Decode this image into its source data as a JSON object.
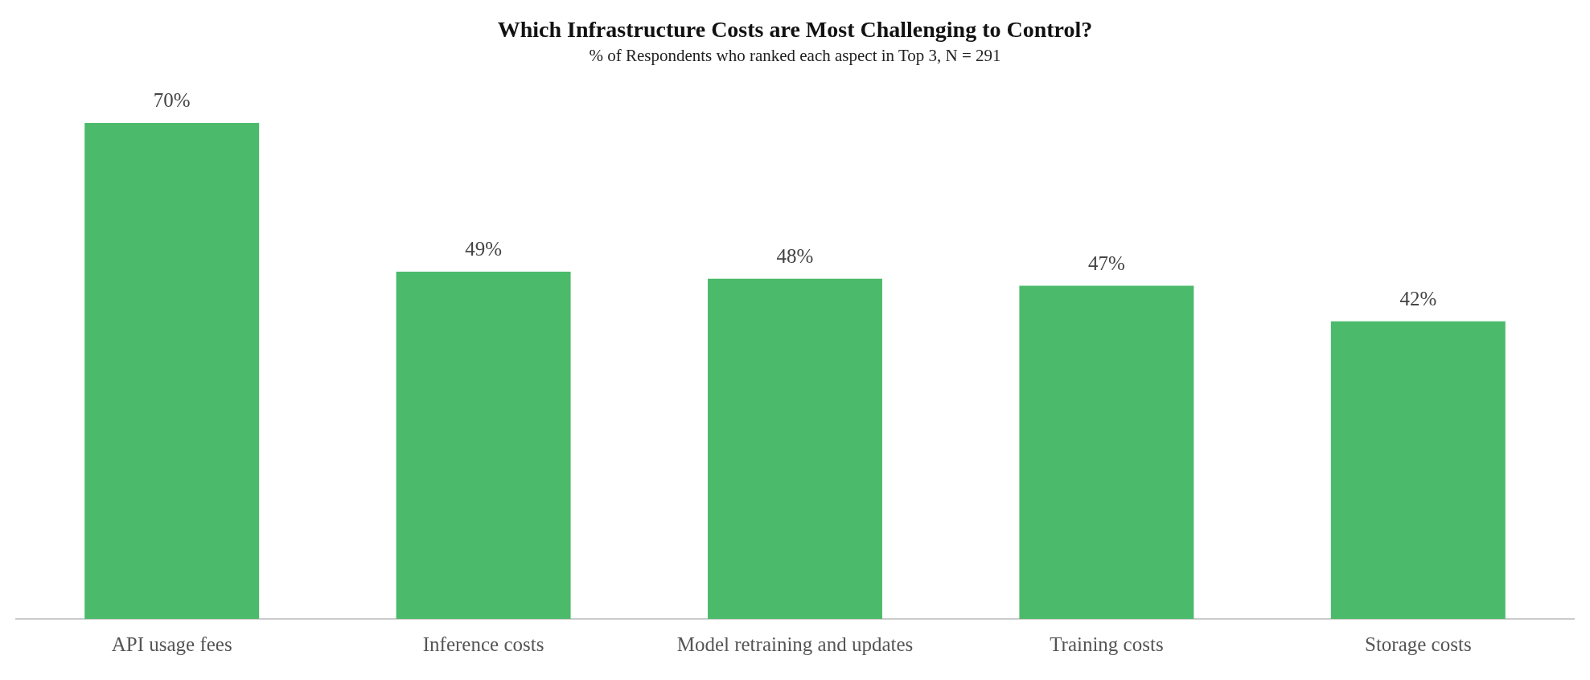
{
  "chart_data": {
    "type": "bar",
    "title": "Which Infrastructure Costs are Most Challenging to Control?",
    "subtitle": "% of Respondents who ranked each aspect in Top 3, N = 291",
    "categories": [
      "API usage fees",
      "Inference costs",
      "Model retraining and updates",
      "Training costs",
      "Storage costs"
    ],
    "values": [
      70,
      49,
      48,
      47,
      42
    ],
    "color": "#4cba6b",
    "value_labels": [
      "70%",
      "49%",
      "48%",
      "47%",
      "42%"
    ],
    "grid": false,
    "legend": false
  }
}
